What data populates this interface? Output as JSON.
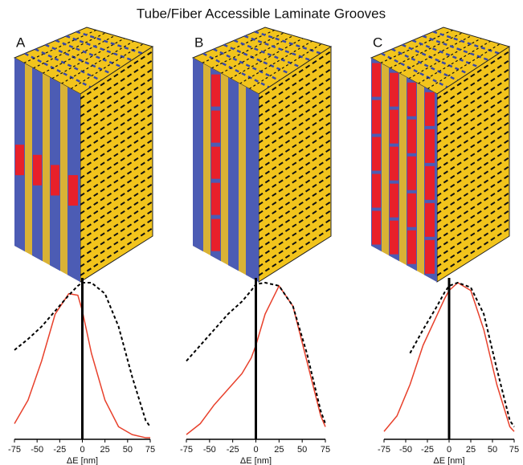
{
  "title": "Tube/Fiber Accessible Laminate Grooves",
  "chart_data": [
    {
      "type": "line",
      "title": "A",
      "xlabel": "ΔE [nm]",
      "x": [
        -75,
        -60,
        -45,
        -30,
        -15,
        -5,
        0,
        10,
        25,
        40,
        55,
        70,
        75
      ],
      "series": [
        {
          "color": "#e8412c",
          "dash": false,
          "values": [
            0.1,
            0.25,
            0.5,
            0.8,
            0.93,
            0.92,
            0.82,
            0.55,
            0.25,
            0.08,
            0.03,
            0.01,
            0.01
          ]
        },
        {
          "color": "#000000",
          "dash": true,
          "values": [
            0.57,
            0.64,
            0.72,
            0.82,
            0.92,
            0.98,
            1.0,
            1.0,
            0.93,
            0.72,
            0.4,
            0.12,
            0.08
          ]
        }
      ],
      "xlim": [
        -75,
        75
      ],
      "xticks": [
        -75,
        -50,
        -25,
        0,
        25,
        50,
        75
      ],
      "ylim": [
        0,
        1
      ],
      "vline": 0
    },
    {
      "type": "line",
      "title": "B",
      "xlabel": "ΔE [nm]",
      "x": [
        -75,
        -60,
        -45,
        -30,
        -15,
        -5,
        0,
        10,
        25,
        40,
        55,
        70,
        75
      ],
      "series": [
        {
          "color": "#e8412c",
          "dash": false,
          "values": [
            0.03,
            0.1,
            0.22,
            0.32,
            0.42,
            0.52,
            0.6,
            0.8,
            0.98,
            0.85,
            0.5,
            0.15,
            0.08
          ]
        },
        {
          "color": "#000000",
          "dash": true,
          "values": [
            0.5,
            0.6,
            0.7,
            0.8,
            0.88,
            0.95,
            0.99,
            1.0,
            0.98,
            0.85,
            0.55,
            0.18,
            0.1
          ]
        }
      ],
      "xlim": [
        -75,
        75
      ],
      "xticks": [
        -75,
        -50,
        -25,
        0,
        25,
        50,
        75
      ],
      "ylim": [
        0,
        1
      ],
      "vline": 0
    },
    {
      "type": "line",
      "title": "C",
      "xlabel": "ΔE [nm]",
      "x": [
        -75,
        -60,
        -45,
        -30,
        -15,
        -5,
        0,
        10,
        25,
        40,
        55,
        70,
        75
      ],
      "series": [
        {
          "color": "#e8412c",
          "dash": false,
          "values": [
            0.05,
            0.15,
            0.35,
            0.6,
            0.78,
            0.9,
            0.95,
            1.0,
            0.95,
            0.7,
            0.35,
            0.08,
            0.05
          ]
        },
        {
          "color": "#000000",
          "dash": true,
          "values": [
            null,
            null,
            0.55,
            0.7,
            0.84,
            0.94,
            0.98,
            1.0,
            0.97,
            0.8,
            0.45,
            0.12,
            0.08
          ]
        }
      ],
      "xlim": [
        -75,
        75
      ],
      "xticks": [
        -75,
        -50,
        -25,
        0,
        25,
        50,
        75
      ],
      "ylim": [
        0,
        1
      ],
      "vline": 0
    }
  ]
}
